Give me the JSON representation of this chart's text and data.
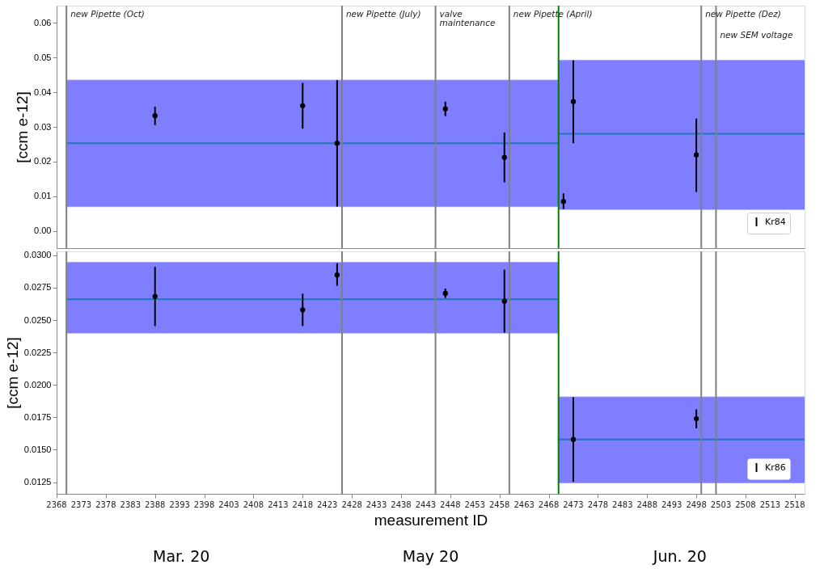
{
  "chart_data": [
    {
      "type": "scatter",
      "ylabel": "[ccm e-12]",
      "x": [
        2388,
        2418,
        2425,
        2447,
        2459,
        2471,
        2473,
        2498
      ],
      "series": [
        {
          "name": "Kr84",
          "color": "#000000",
          "values": [
            0.0332,
            0.0361,
            0.0253,
            0.0352,
            0.0212,
            0.0085,
            0.0373,
            0.0219
          ],
          "errors": [
            [
              0.0305,
              0.0358
            ],
            [
              0.0295,
              0.0427
            ],
            [
              0.007,
              0.0435
            ],
            [
              0.0331,
              0.0373
            ],
            [
              0.014,
              0.0284
            ],
            [
              0.0063,
              0.0108
            ],
            [
              0.0253,
              0.0492
            ],
            [
              0.0112,
              0.0324
            ]
          ]
        },
        {
          "type": "line",
          "marker": "none",
          "color": "#1f77b4",
          "x": [
            2370,
            2470
          ],
          "values": [
            0.0253,
            0.0253
          ],
          "lower": [
            0.007,
            0.007
          ],
          "upper": [
            0.0435,
            0.0435
          ]
        },
        {
          "type": "line",
          "marker": "none",
          "color": "#1f77b4",
          "x": [
            2470,
            2520
          ],
          "values": [
            0.028,
            0.028
          ],
          "lower": [
            0.0062,
            0.0062
          ],
          "upper": [
            0.0492,
            0.0492
          ]
        }
      ],
      "xlim": [
        2368,
        2520
      ],
      "ylim": [
        -0.005,
        0.065
      ],
      "yticks": [
        {
          "value": 0,
          "label": "0.00"
        },
        {
          "value": 0.01,
          "label": "0.01"
        },
        {
          "value": 0.02,
          "label": "0.02"
        },
        {
          "value": 0.03,
          "label": "0.03"
        },
        {
          "value": 0.04,
          "label": "0.04"
        },
        {
          "value": 0.05,
          "label": "0.05"
        },
        {
          "value": 0.06,
          "label": "0.06"
        }
      ],
      "tick_labels": "y",
      "ref_lines": [
        {
          "axis": "x",
          "value": 2370,
          "label": "new Pipette (Oct)",
          "color": "#808080"
        },
        {
          "axis": "x",
          "value": 2426,
          "label": "new Pipette (July)",
          "color": "#808080"
        },
        {
          "axis": "x",
          "value": 2445,
          "label": "valve\nmaintenance",
          "color": "#808080"
        },
        {
          "axis": "x",
          "value": 2460,
          "label": "new Pipette (April)",
          "color": "#808080"
        },
        {
          "axis": "x",
          "value": 2470,
          "color": "#008000"
        },
        {
          "axis": "x",
          "value": 2499,
          "label": "new Pipette (Dez)",
          "color": "#808080"
        },
        {
          "axis": "x",
          "value": 2502,
          "label": "new SEM voltage",
          "color": "#808080"
        }
      ],
      "legend": "bottom right",
      "grid": false,
      "marker": "circle"
    },
    {
      "type": "scatter",
      "ylabel": "[ccm e-12]",
      "xlabel": "measurement ID",
      "x": [
        2388,
        2418,
        2425,
        2447,
        2459,
        2473,
        2498
      ],
      "series": [
        {
          "name": "Kr86",
          "color": "#000000",
          "values": [
            0.02682,
            0.02579,
            0.02848,
            0.02706,
            0.02645,
            0.01579,
            0.01739
          ],
          "errors": [
            [
              0.02454,
              0.0291
            ],
            [
              0.02454,
              0.02704
            ],
            [
              0.02764,
              0.02938
            ],
            [
              0.0267,
              0.02743
            ],
            [
              0.02403,
              0.02889
            ],
            [
              0.01252,
              0.01905
            ],
            [
              0.01665,
              0.01811
            ]
          ]
        },
        {
          "type": "line",
          "marker": "none",
          "color": "#1f77b4",
          "x": [
            2370,
            2470
          ],
          "values": [
            0.02661,
            0.02661
          ],
          "lower": [
            0.02401,
            0.02401
          ],
          "upper": [
            0.02945,
            0.02945
          ]
        },
        {
          "type": "line",
          "marker": "none",
          "color": "#1f77b4",
          "x": [
            2470,
            2520
          ],
          "values": [
            0.01579,
            0.01579
          ],
          "lower": [
            0.01246,
            0.01246
          ],
          "upper": [
            0.01907,
            0.01907
          ]
        }
      ],
      "xlim": [
        2368,
        2520
      ],
      "ylim": [
        0.0116,
        0.0303
      ],
      "xticks": [
        2368,
        2373,
        2378,
        2383,
        2388,
        2393,
        2398,
        2403,
        2408,
        2413,
        2418,
        2423,
        2428,
        2433,
        2438,
        2443,
        2448,
        2453,
        2458,
        2463,
        2468,
        2473,
        2478,
        2483,
        2488,
        2493,
        2498,
        2503,
        2508,
        2513,
        2518
      ],
      "yticks": [
        {
          "value": 0.0125,
          "label": "0.0125"
        },
        {
          "value": 0.015,
          "label": "0.0150"
        },
        {
          "value": 0.0175,
          "label": "0.0175"
        },
        {
          "value": 0.02,
          "label": "0.0200"
        },
        {
          "value": 0.0225,
          "label": "0.0225"
        },
        {
          "value": 0.025,
          "label": "0.0250"
        },
        {
          "value": 0.0275,
          "label": "0.0275"
        },
        {
          "value": 0.03,
          "label": "0.0300"
        }
      ],
      "ref_lines": [
        {
          "axis": "x",
          "value": 2370,
          "color": "#808080"
        },
        {
          "axis": "x",
          "value": 2426,
          "color": "#808080"
        },
        {
          "axis": "x",
          "value": 2445,
          "color": "#808080"
        },
        {
          "axis": "x",
          "value": 2460,
          "color": "#808080"
        },
        {
          "axis": "x",
          "value": 2470,
          "color": "#008000"
        },
        {
          "axis": "x",
          "value": 2499,
          "color": "#808080"
        },
        {
          "axis": "x",
          "value": 2502,
          "color": "#808080"
        }
      ],
      "annotations": [
        "Mar. 20",
        "May 20",
        "Jun. 20"
      ],
      "legend": "bottom right",
      "grid": false,
      "marker": "circle"
    }
  ]
}
